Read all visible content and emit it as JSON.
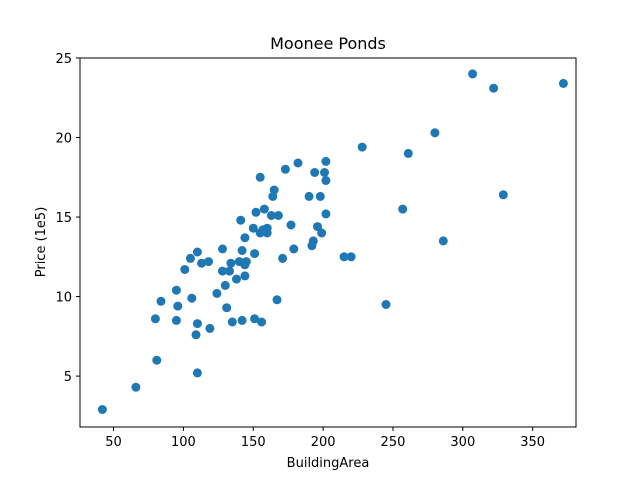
{
  "chart_data": {
    "type": "scatter",
    "title": "Moonee Ponds",
    "xlabel": "BuildingArea",
    "ylabel": "Price (1e5)",
    "xlim": [
      26,
      381
    ],
    "ylim": [
      1.8,
      25
    ],
    "xticks": [
      50,
      100,
      150,
      200,
      250,
      300,
      350
    ],
    "yticks": [
      5,
      10,
      15,
      20,
      25
    ],
    "grid": false,
    "color": "#1f77b4",
    "points": [
      [
        42,
        2.9
      ],
      [
        66,
        4.3
      ],
      [
        81,
        6.0
      ],
      [
        80,
        8.6
      ],
      [
        84,
        9.7
      ],
      [
        95,
        8.5
      ],
      [
        95,
        10.4
      ],
      [
        96,
        9.4
      ],
      [
        101,
        11.7
      ],
      [
        105,
        12.4
      ],
      [
        106,
        9.9
      ],
      [
        109,
        7.6
      ],
      [
        110,
        8.3
      ],
      [
        110,
        12.8
      ],
      [
        110,
        5.2
      ],
      [
        113,
        12.1
      ],
      [
        118,
        12.2
      ],
      [
        119,
        8.0
      ],
      [
        124,
        10.2
      ],
      [
        128,
        11.6
      ],
      [
        128,
        13.0
      ],
      [
        130,
        10.7
      ],
      [
        131,
        9.3
      ],
      [
        133,
        11.6
      ],
      [
        134,
        12.1
      ],
      [
        135,
        8.4
      ],
      [
        138,
        11.1
      ],
      [
        140,
        12.2
      ],
      [
        141,
        14.8
      ],
      [
        142,
        12.9
      ],
      [
        142,
        8.5
      ],
      [
        144,
        12.0
      ],
      [
        144,
        11.3
      ],
      [
        144,
        13.7
      ],
      [
        145,
        12.2
      ],
      [
        150,
        14.3
      ],
      [
        151,
        8.6
      ],
      [
        151,
        12.7
      ],
      [
        152,
        15.3
      ],
      [
        155,
        17.5
      ],
      [
        155,
        14.0
      ],
      [
        156,
        8.4
      ],
      [
        157,
        14.2
      ],
      [
        158,
        15.5
      ],
      [
        160,
        14.3
      ],
      [
        160,
        14.0
      ],
      [
        163,
        15.1
      ],
      [
        164,
        16.3
      ],
      [
        165,
        16.7
      ],
      [
        167,
        9.8
      ],
      [
        168,
        15.1
      ],
      [
        171,
        12.4
      ],
      [
        173,
        18.0
      ],
      [
        177,
        14.5
      ],
      [
        179,
        13.0
      ],
      [
        182,
        18.4
      ],
      [
        190,
        16.3
      ],
      [
        192,
        13.2
      ],
      [
        193,
        13.5
      ],
      [
        194,
        17.8
      ],
      [
        196,
        14.4
      ],
      [
        198,
        16.3
      ],
      [
        199,
        14.0
      ],
      [
        201,
        17.8
      ],
      [
        202,
        17.3
      ],
      [
        202,
        18.5
      ],
      [
        202,
        15.2
      ],
      [
        215,
        12.5
      ],
      [
        220,
        12.5
      ],
      [
        228,
        19.4
      ],
      [
        245,
        9.5
      ],
      [
        257,
        15.5
      ],
      [
        261,
        19.0
      ],
      [
        280,
        20.3
      ],
      [
        286,
        13.5
      ],
      [
        307,
        24.0
      ],
      [
        322,
        23.1
      ],
      [
        329,
        16.4
      ],
      [
        372,
        23.4
      ]
    ]
  }
}
